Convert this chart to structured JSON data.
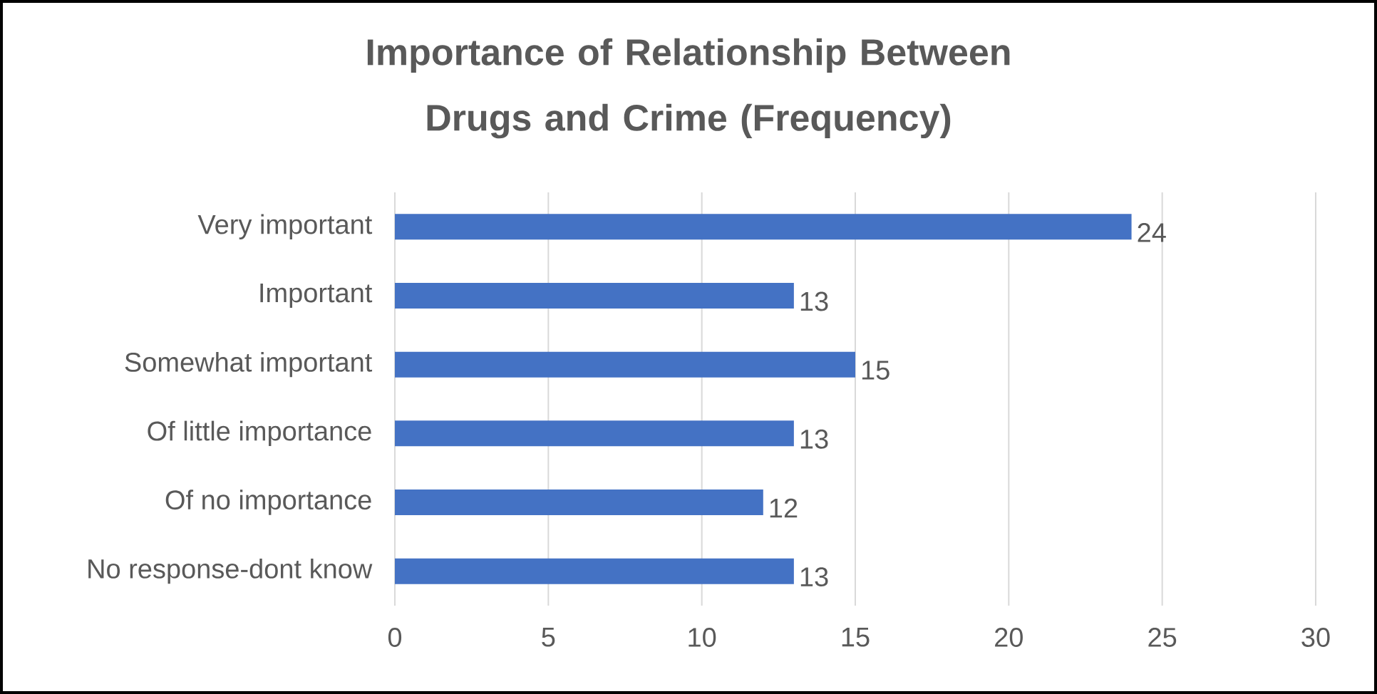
{
  "chart_data": {
    "type": "bar",
    "orientation": "horizontal",
    "title": "Importance of Relationship Between Drugs and Crime (Frequency)",
    "categories": [
      "Very important",
      "Important",
      "Somewhat important",
      "Of little importance",
      "Of no importance",
      "No response-dont know"
    ],
    "values": [
      24,
      13,
      15,
      13,
      12,
      13
    ],
    "color": "#4472c4",
    "xlim": [
      0,
      30
    ],
    "xticks": [
      0,
      5,
      10,
      15,
      20,
      25,
      30
    ],
    "grid": "x",
    "data_labels": true
  }
}
